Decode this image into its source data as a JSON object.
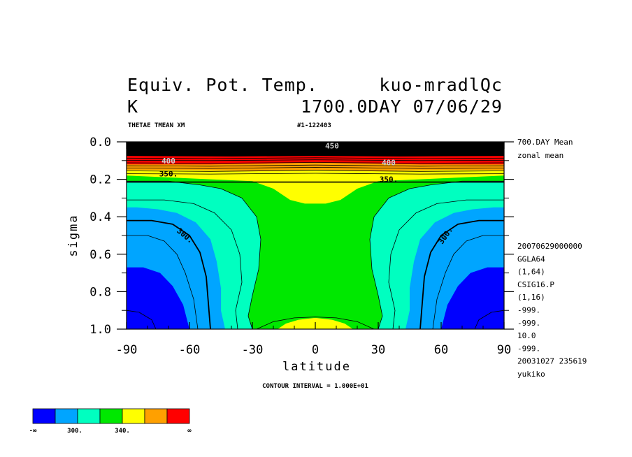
{
  "title": {
    "line1_left": "Equiv. Pot. Temp.",
    "line1_right": "kuo-mradlQc",
    "line2_left": "K",
    "line2_right": "1700.0DAY 07/06/29"
  },
  "subtitle_left": "THETAE TMEAN XM",
  "subtitle_right": "#1-122403",
  "info_right": [
    "700.DAY Mean",
    "zonal mean"
  ],
  "meta_right": [
    "20070629000000",
    "GGLA64",
    "(1,64)",
    "CSIG16.P",
    "(1,16)",
    "-999.",
    "-999.",
    "10.0",
    "-999.",
    "20031027 235619",
    "yukiko"
  ],
  "contour_interval": "CONTOUR INTERVAL = 1.000E+01",
  "colorbar": {
    "colors": [
      "#0000ff",
      "#00a5ff",
      "#00ffc0",
      "#00e800",
      "#ffff00",
      "#ffa000",
      "#ff0000"
    ],
    "labels": [
      "-∞",
      "300.",
      "340.",
      "∞"
    ]
  },
  "chart_data": {
    "type": "heatmap",
    "xlabel": "latitude",
    "ylabel": "sigma",
    "xlim": [
      -90,
      90
    ],
    "ylim": [
      1.0,
      0.0
    ],
    "x_ticks": [
      "-90",
      "-60",
      "-30",
      "0",
      "30",
      "60",
      "90"
    ],
    "y_ticks": [
      "0.0",
      "0.2",
      "0.4",
      "0.6",
      "0.8",
      "1.0"
    ],
    "levels": [
      290,
      300,
      320,
      340,
      350,
      360,
      380
    ],
    "contour_labels": [
      {
        "text": "300.",
        "lat": -62,
        "sigma": 0.5
      },
      {
        "text": "300.",
        "lat": 62,
        "sigma": 0.5
      },
      {
        "text": "350.",
        "lat": -70,
        "sigma": 0.17
      },
      {
        "text": "350.",
        "lat": 35,
        "sigma": 0.2
      },
      {
        "text": "400",
        "lat": -70,
        "sigma": 0.1
      },
      {
        "text": "400",
        "lat": 35,
        "sigma": 0.11
      },
      {
        "text": "450",
        "lat": 8,
        "sigma": 0.02
      }
    ]
  }
}
